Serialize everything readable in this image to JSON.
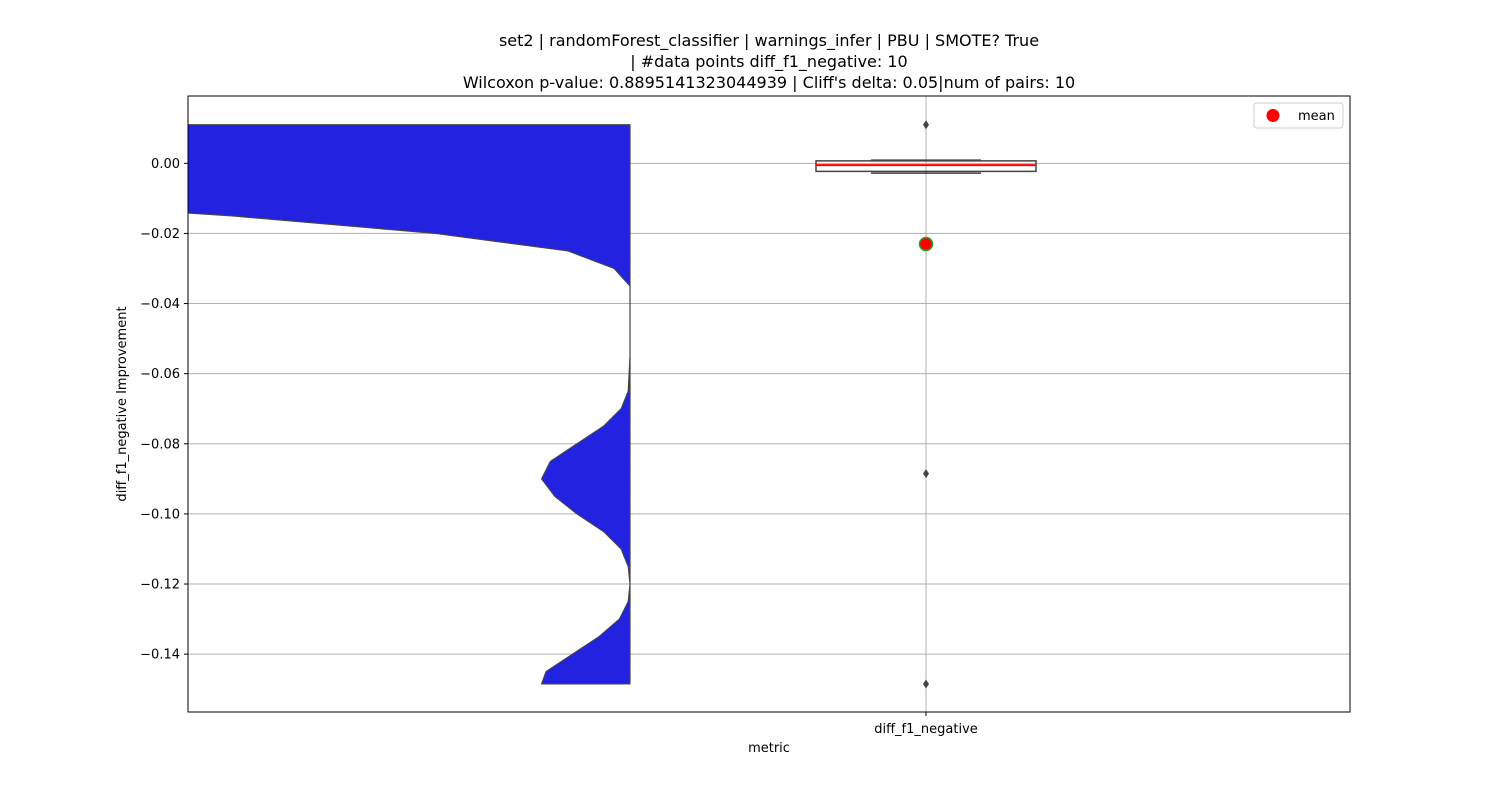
{
  "chart_data": {
    "type": "violin+box",
    "title_lines": [
      "set2 | randomForest_classifier | warnings_infer | PBU | SMOTE? True",
      "| #data points diff_f1_negative: 10",
      "Wilcoxon p-value: 0.8895141323044939 | Cliff's delta: 0.05|num of pairs: 10"
    ],
    "xlabel": "metric",
    "ylabel": "diff_f1_negative Improvement",
    "categories": [
      "diff_f1_negative"
    ],
    "ylim": [
      -0.1565,
      0.0192
    ],
    "yticks": [
      0.0,
      -0.02,
      -0.04,
      -0.06,
      -0.08,
      -0.1,
      -0.12,
      -0.14
    ],
    "ytick_labels": [
      "0.00",
      "−0.02",
      "−0.04",
      "−0.06",
      "−0.08",
      "−0.10",
      "−0.12",
      "−0.14"
    ],
    "grid": true,
    "legend": {
      "position": "top-right",
      "entries": [
        {
          "label": "mean",
          "color": "#ff0000"
        }
      ]
    },
    "violin": {
      "color": "#2222e0",
      "y_range": [
        -0.1485,
        0.011
      ],
      "profile": [
        [
          0.011,
          1.0
        ],
        [
          0.006,
          1.0
        ],
        [
          0.0,
          1.0
        ],
        [
          -0.005,
          0.92
        ],
        [
          -0.01,
          0.75
        ],
        [
          -0.015,
          0.45
        ],
        [
          -0.02,
          0.22
        ],
        [
          -0.025,
          0.07
        ],
        [
          -0.03,
          0.018
        ],
        [
          -0.035,
          0.0
        ],
        [
          -0.045,
          0.0
        ],
        [
          -0.055,
          0.0
        ],
        [
          -0.065,
          0.002
        ],
        [
          -0.07,
          0.01
        ],
        [
          -0.075,
          0.03
        ],
        [
          -0.08,
          0.06
        ],
        [
          -0.085,
          0.09
        ],
        [
          -0.09,
          0.1
        ],
        [
          -0.095,
          0.085
        ],
        [
          -0.1,
          0.06
        ],
        [
          -0.105,
          0.03
        ],
        [
          -0.11,
          0.01
        ],
        [
          -0.115,
          0.002
        ],
        [
          -0.12,
          0.0
        ],
        [
          -0.125,
          0.002
        ],
        [
          -0.13,
          0.012
        ],
        [
          -0.135,
          0.035
        ],
        [
          -0.14,
          0.065
        ],
        [
          -0.145,
          0.095
        ],
        [
          -0.1485,
          0.1
        ]
      ]
    },
    "box": {
      "q1": -0.0023,
      "median": -0.0005,
      "q3": 0.0007,
      "whisker_low": -0.0028,
      "whisker_high": 0.0009,
      "mean": -0.023,
      "mean_color": "#ff0000",
      "median_color": "#ff0000",
      "outliers": [
        0.011,
        -0.0885,
        -0.1485
      ]
    }
  }
}
